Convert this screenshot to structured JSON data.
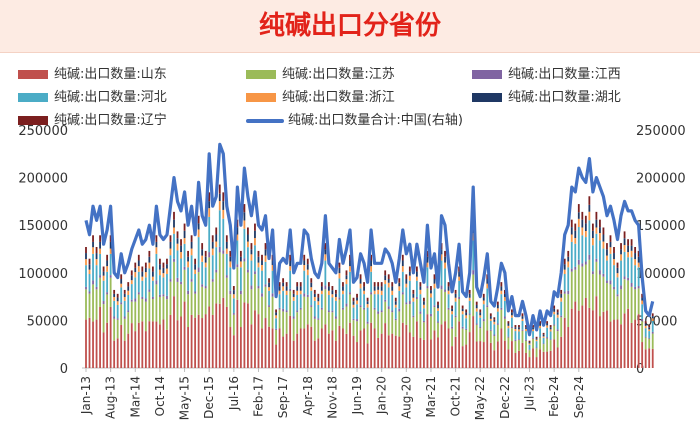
{
  "chart_data": {
    "type": "bar",
    "title": "纯碱出口分省份",
    "series": [
      {
        "name": "纯碱:出口数量:山东",
        "color": "#c0504d"
      },
      {
        "name": "纯碱:出口数量:江苏",
        "color": "#9bbb59"
      },
      {
        "name": "纯碱:出口数量:江西",
        "color": "#8064a2"
      },
      {
        "name": "纯碱:出口数量:河北",
        "color": "#4bacc6"
      },
      {
        "name": "纯碱:出口数量:浙江",
        "color": "#f79646"
      },
      {
        "name": "纯碱:出口数量:湖北",
        "color": "#1f3864"
      },
      {
        "name": "纯碱:出口数量:辽宁",
        "color": "#7b1f1f"
      },
      {
        "name": "纯碱:出口数量合计:中国(右轴)",
        "color": "#4472c4",
        "type": "line"
      }
    ],
    "x_tick_labels": [
      "Jan-13",
      "Aug-13",
      "Mar-14",
      "Oct-14",
      "May-15",
      "Dec-15",
      "Jul-16",
      "Feb-17",
      "Sep-17",
      "Apr-18",
      "Nov-18",
      "Jun-19",
      "Jan-20",
      "Aug-20",
      "Mar-21",
      "Oct-21",
      "May-22",
      "Dec-22",
      "Jul-23",
      "Feb-24",
      "Sep-24"
    ],
    "x_start": "2013-01",
    "y_left_ticks": [
      "0",
      "50000",
      "100000",
      "150000",
      "200000",
      "250000"
    ],
    "y_right_ticks": [
      "0",
      "50000",
      "100000",
      "150000",
      "200000",
      "250000"
    ],
    "ylim": [
      0,
      250000
    ],
    "total_monthly": [
      155000,
      140000,
      170000,
      155000,
      170000,
      130000,
      145000,
      170000,
      100000,
      95000,
      120000,
      100000,
      110000,
      125000,
      135000,
      145000,
      130000,
      135000,
      150000,
      130000,
      170000,
      140000,
      135000,
      140000,
      170000,
      200000,
      175000,
      165000,
      185000,
      150000,
      170000,
      140000,
      195000,
      160000,
      150000,
      225000,
      170000,
      180000,
      235000,
      225000,
      170000,
      150000,
      105000,
      190000,
      150000,
      210000,
      180000,
      160000,
      185000,
      150000,
      145000,
      160000,
      115000,
      145000,
      75000,
      110000,
      115000,
      110000,
      145000,
      100000,
      110000,
      110000,
      145000,
      140000,
      115000,
      100000,
      95000,
      110000,
      160000,
      110000,
      105000,
      100000,
      135000,
      110000,
      125000,
      145000,
      90000,
      95000,
      120000,
      110000,
      90000,
      145000,
      110000,
      110000,
      110000,
      125000,
      120000,
      110000,
      90000,
      115000,
      145000,
      120000,
      130000,
      100000,
      130000,
      110000,
      90000,
      150000,
      105000,
      120000,
      85000,
      160000,
      150000,
      110000,
      80000,
      100000,
      130000,
      80000,
      75000,
      100000,
      190000,
      85000,
      75000,
      95000,
      120000,
      70000,
      65000,
      85000,
      110000,
      100000,
      60000,
      75000,
      55000,
      55000,
      70000,
      55000,
      35000,
      55000,
      40000,
      60000,
      45000,
      60000,
      55000,
      80000,
      75000,
      100000,
      140000,
      150000,
      190000,
      185000,
      210000,
      200000,
      195000,
      220000,
      185000,
      200000,
      190000,
      180000,
      160000,
      170000,
      155000,
      135000,
      160000,
      175000,
      165000,
      165000,
      155000,
      150000,
      95000,
      60000,
      55000,
      70000
    ]
  }
}
